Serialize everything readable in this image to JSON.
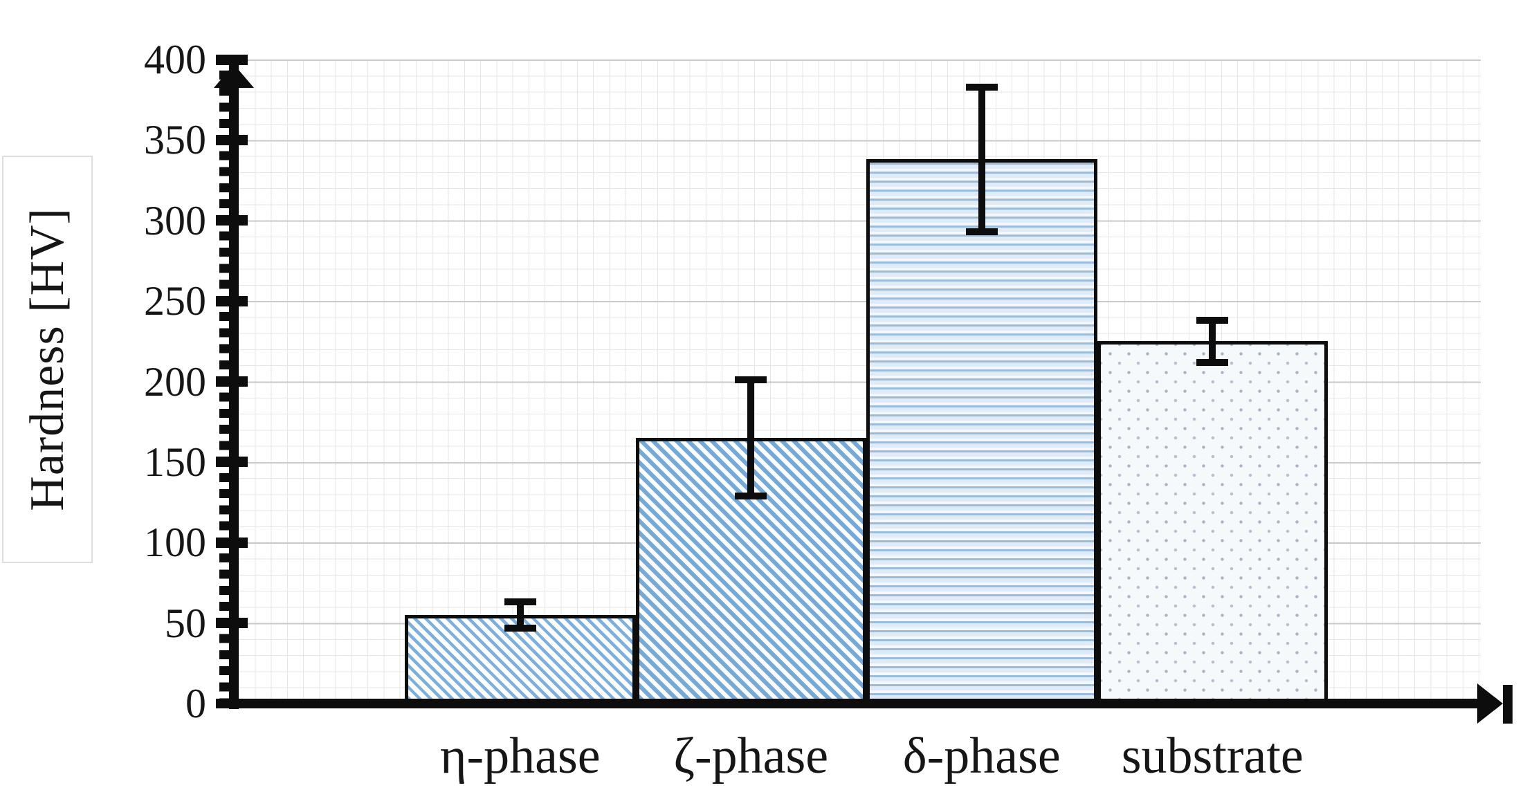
{
  "chart_data": {
    "type": "bar",
    "title": "",
    "ylabel": "Hardness [HV]",
    "xlabel": "",
    "categories": [
      "η-phase",
      "ζ-phase",
      "δ-phase",
      "substrate"
    ],
    "values": [
      55,
      165,
      338,
      225
    ],
    "errors": [
      8,
      36,
      45,
      13
    ],
    "patterns": [
      "diag-light",
      "diag",
      "hlines",
      "dots"
    ],
    "ylim": [
      0,
      400
    ],
    "ytick_step": 50,
    "ytick_labels": [
      "0",
      "50",
      "100",
      "150",
      "200",
      "250",
      "300",
      "350",
      "400"
    ],
    "legend": "none",
    "grid": "minor-square-dotted-with-major-horizontal",
    "colors": {
      "bar_outline": "#0d0d0d",
      "hatch_blue": "#74a9d8",
      "hatch_blue_light": "#7cafdd",
      "hline_blue": "#9cbbd8",
      "dot_blue_gray": "#a9b3c6",
      "axis": "#0d0d0d",
      "grid_major": "#c9c9c9",
      "grid_minor": "#eae5e3"
    }
  }
}
